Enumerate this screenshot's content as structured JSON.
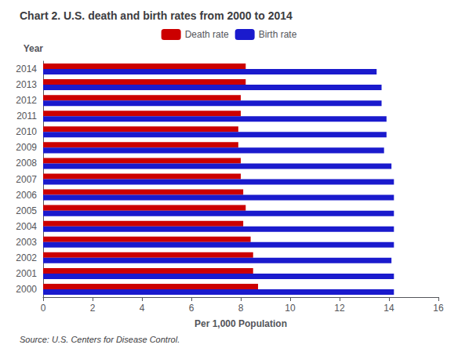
{
  "chart_data": {
    "type": "bar",
    "orientation": "horizontal",
    "title": "Chart 2. U.S. death and birth rates from 2000 to 2014",
    "categories": [
      "2000",
      "2001",
      "2002",
      "2003",
      "2004",
      "2005",
      "2006",
      "2007",
      "2008",
      "2009",
      "2010",
      "2011",
      "2012",
      "2013",
      "2014"
    ],
    "series": [
      {
        "name": "Death rate",
        "color": "#CC0000",
        "values": [
          8.7,
          8.5,
          8.5,
          8.4,
          8.1,
          8.2,
          8.1,
          8.0,
          8.0,
          7.9,
          7.9,
          8.0,
          8.0,
          8.2,
          8.2
        ]
      },
      {
        "name": "Birth rate",
        "color": "#1A1ACD",
        "values": [
          14.2,
          14.2,
          14.1,
          14.2,
          14.2,
          14.2,
          14.2,
          14.2,
          14.1,
          13.8,
          13.9,
          13.9,
          13.7,
          13.7,
          13.5
        ]
      }
    ],
    "xlabel": "Per 1,000 Population",
    "ylabel": "Year",
    "xlim": [
      0,
      16
    ],
    "xticks": [
      0,
      2,
      4,
      6,
      8,
      10,
      12,
      14,
      16
    ],
    "grid": false,
    "legend": "top",
    "annotation": "Source: U.S. Centers for Disease Control."
  }
}
